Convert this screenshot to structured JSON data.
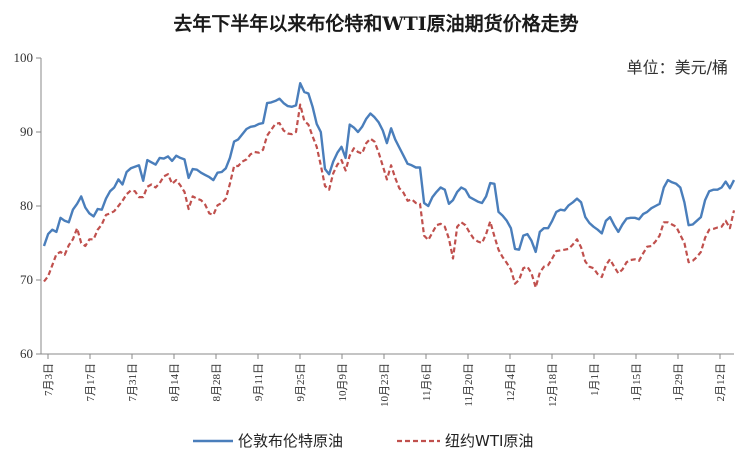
{
  "chart_data": {
    "type": "line",
    "title": "去年下半年以来布伦特和WTI原油期货价格走势",
    "unit_label": "单位：美元/桶",
    "ylim": [
      60,
      100
    ],
    "yticks": [
      60,
      70,
      80,
      90,
      100
    ],
    "x_tick_labels": [
      "7月3日",
      "7月17日",
      "7月31日",
      "8月14日",
      "8月28日",
      "9月11日",
      "9月25日",
      "10月9日",
      "10月23日",
      "11月6日",
      "11月20日",
      "12月4日",
      "12月18日",
      "1月1日",
      "1月15日",
      "1月29日",
      "2月12日"
    ],
    "grid": false,
    "legend_position": "bottom",
    "colors": {
      "brent": "#4a7ebb",
      "wti": "#c0504d"
    },
    "series": [
      {
        "name": "伦敦布伦特原油",
        "style": "solid",
        "values": [
          74.6,
          76.2,
          76.8,
          76.5,
          78.4,
          78.0,
          77.8,
          79.5,
          80.3,
          81.3,
          79.8,
          79.0,
          78.6,
          79.6,
          79.5,
          81.0,
          82.0,
          82.5,
          83.6,
          82.9,
          84.6,
          85.1,
          85.3,
          85.5,
          83.4,
          86.2,
          85.9,
          85.6,
          86.5,
          86.4,
          86.7,
          86.1,
          86.8,
          86.5,
          86.3,
          83.8,
          85.0,
          84.9,
          84.5,
          84.2,
          83.9,
          83.5,
          84.5,
          84.6,
          85.1,
          86.5,
          88.7,
          89.0,
          89.7,
          90.4,
          90.7,
          90.8,
          91.1,
          91.2,
          93.9,
          94.0,
          94.2,
          94.5,
          93.9,
          93.5,
          93.4,
          93.6,
          96.6,
          95.4,
          95.2,
          93.4,
          91.1,
          90.0,
          85.0,
          84.3,
          86.0,
          87.2,
          88.0,
          86.5,
          91.0,
          90.6,
          90.0,
          90.7,
          91.8,
          92.5,
          92.0,
          91.3,
          90.2,
          88.5,
          90.5,
          89.0,
          87.9,
          86.8,
          85.7,
          85.5,
          85.2,
          85.2,
          80.4,
          80.0,
          81.2,
          81.9,
          82.5,
          82.2,
          80.3,
          80.8,
          81.9,
          82.5,
          82.2,
          81.2,
          80.9,
          80.6,
          80.4,
          81.3,
          83.1,
          83.0,
          79.2,
          78.7,
          78.0,
          77.0,
          74.2,
          74.1,
          76.0,
          76.2,
          75.3,
          73.8,
          76.5,
          77.0,
          77.0,
          78.0,
          79.2,
          79.5,
          79.4,
          80.1,
          80.5,
          81.0,
          80.5,
          78.5,
          77.7,
          77.2,
          76.8,
          76.3,
          78.0,
          78.5,
          77.4,
          76.5,
          77.5,
          78.3,
          78.4,
          78.4,
          78.2,
          78.9,
          79.2,
          79.7,
          80.0,
          80.3,
          82.5,
          83.5,
          83.2,
          83.0,
          82.5,
          80.5,
          77.4,
          77.5,
          78.0,
          78.5,
          80.8,
          82.0,
          82.2,
          82.2,
          82.5,
          83.3,
          82.4,
          83.5
        ]
      },
      {
        "name": "纽约WTI原油",
        "style": "dashed",
        "values": [
          69.8,
          70.5,
          72.0,
          73.5,
          73.8,
          73.4,
          74.7,
          75.5,
          77.0,
          75.0,
          74.6,
          75.5,
          75.5,
          76.8,
          77.5,
          78.8,
          79.0,
          79.3,
          80.0,
          80.7,
          81.6,
          82.1,
          82.0,
          81.2,
          81.2,
          82.6,
          82.9,
          82.5,
          83.1,
          84.0,
          84.3,
          83.0,
          83.5,
          82.8,
          81.9,
          79.6,
          81.3,
          81.0,
          80.8,
          80.2,
          79.0,
          78.8,
          80.1,
          80.4,
          81.0,
          83.0,
          85.4,
          85.4,
          86.0,
          86.3,
          87.0,
          87.3,
          87.2,
          87.6,
          89.5,
          90.3,
          91.1,
          91.2,
          90.2,
          89.8,
          89.7,
          90.0,
          93.7,
          91.5,
          91.0,
          89.4,
          88.0,
          85.5,
          82.7,
          82.2,
          84.4,
          85.6,
          86.2,
          84.8,
          86.8,
          87.8,
          87.3,
          87.1,
          88.5,
          89.1,
          88.7,
          87.2,
          85.4,
          83.6,
          85.5,
          83.8,
          82.4,
          81.8,
          80.7,
          80.9,
          80.4,
          80.3,
          76.0,
          75.4,
          76.4,
          77.4,
          77.6,
          77.2,
          75.6,
          72.9,
          77.2,
          77.8,
          77.4,
          76.4,
          75.6,
          75.2,
          75.0,
          76.2,
          77.9,
          75.9,
          74.1,
          73.1,
          72.3,
          71.4,
          69.5,
          70.0,
          71.6,
          71.8,
          70.9,
          69.0,
          71.0,
          71.8,
          72.0,
          72.9,
          73.9,
          74.0,
          74.1,
          74.2,
          74.8,
          75.5,
          74.4,
          72.5,
          71.8,
          71.6,
          70.8,
          70.4,
          72.0,
          72.8,
          71.8,
          70.9,
          71.4,
          72.4,
          72.7,
          72.8,
          72.6,
          73.6,
          74.5,
          74.6,
          75.2,
          76.0,
          77.8,
          77.8,
          77.5,
          77.2,
          76.1,
          75.0,
          72.4,
          72.6,
          73.1,
          73.8,
          75.7,
          76.8,
          76.9,
          77.1,
          77.2,
          78.0,
          77.0,
          79.4
        ]
      }
    ]
  }
}
